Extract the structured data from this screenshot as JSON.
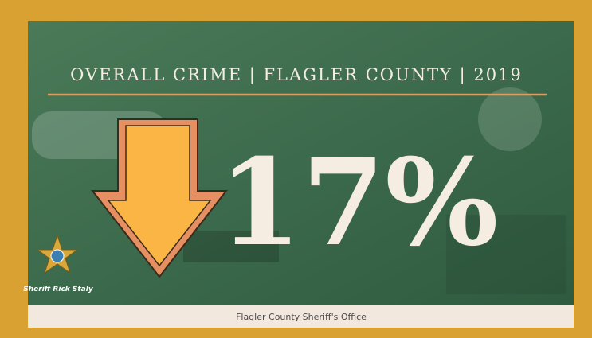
{
  "header": {
    "title": "OVERALL CRIME | FLAGLER COUNTY | 2019"
  },
  "headline": {
    "figure": "17%"
  },
  "badge": {
    "caption": "Sheriff Rick Staly"
  },
  "footer": {
    "text": "Flagler County Sheriff's Office"
  }
}
